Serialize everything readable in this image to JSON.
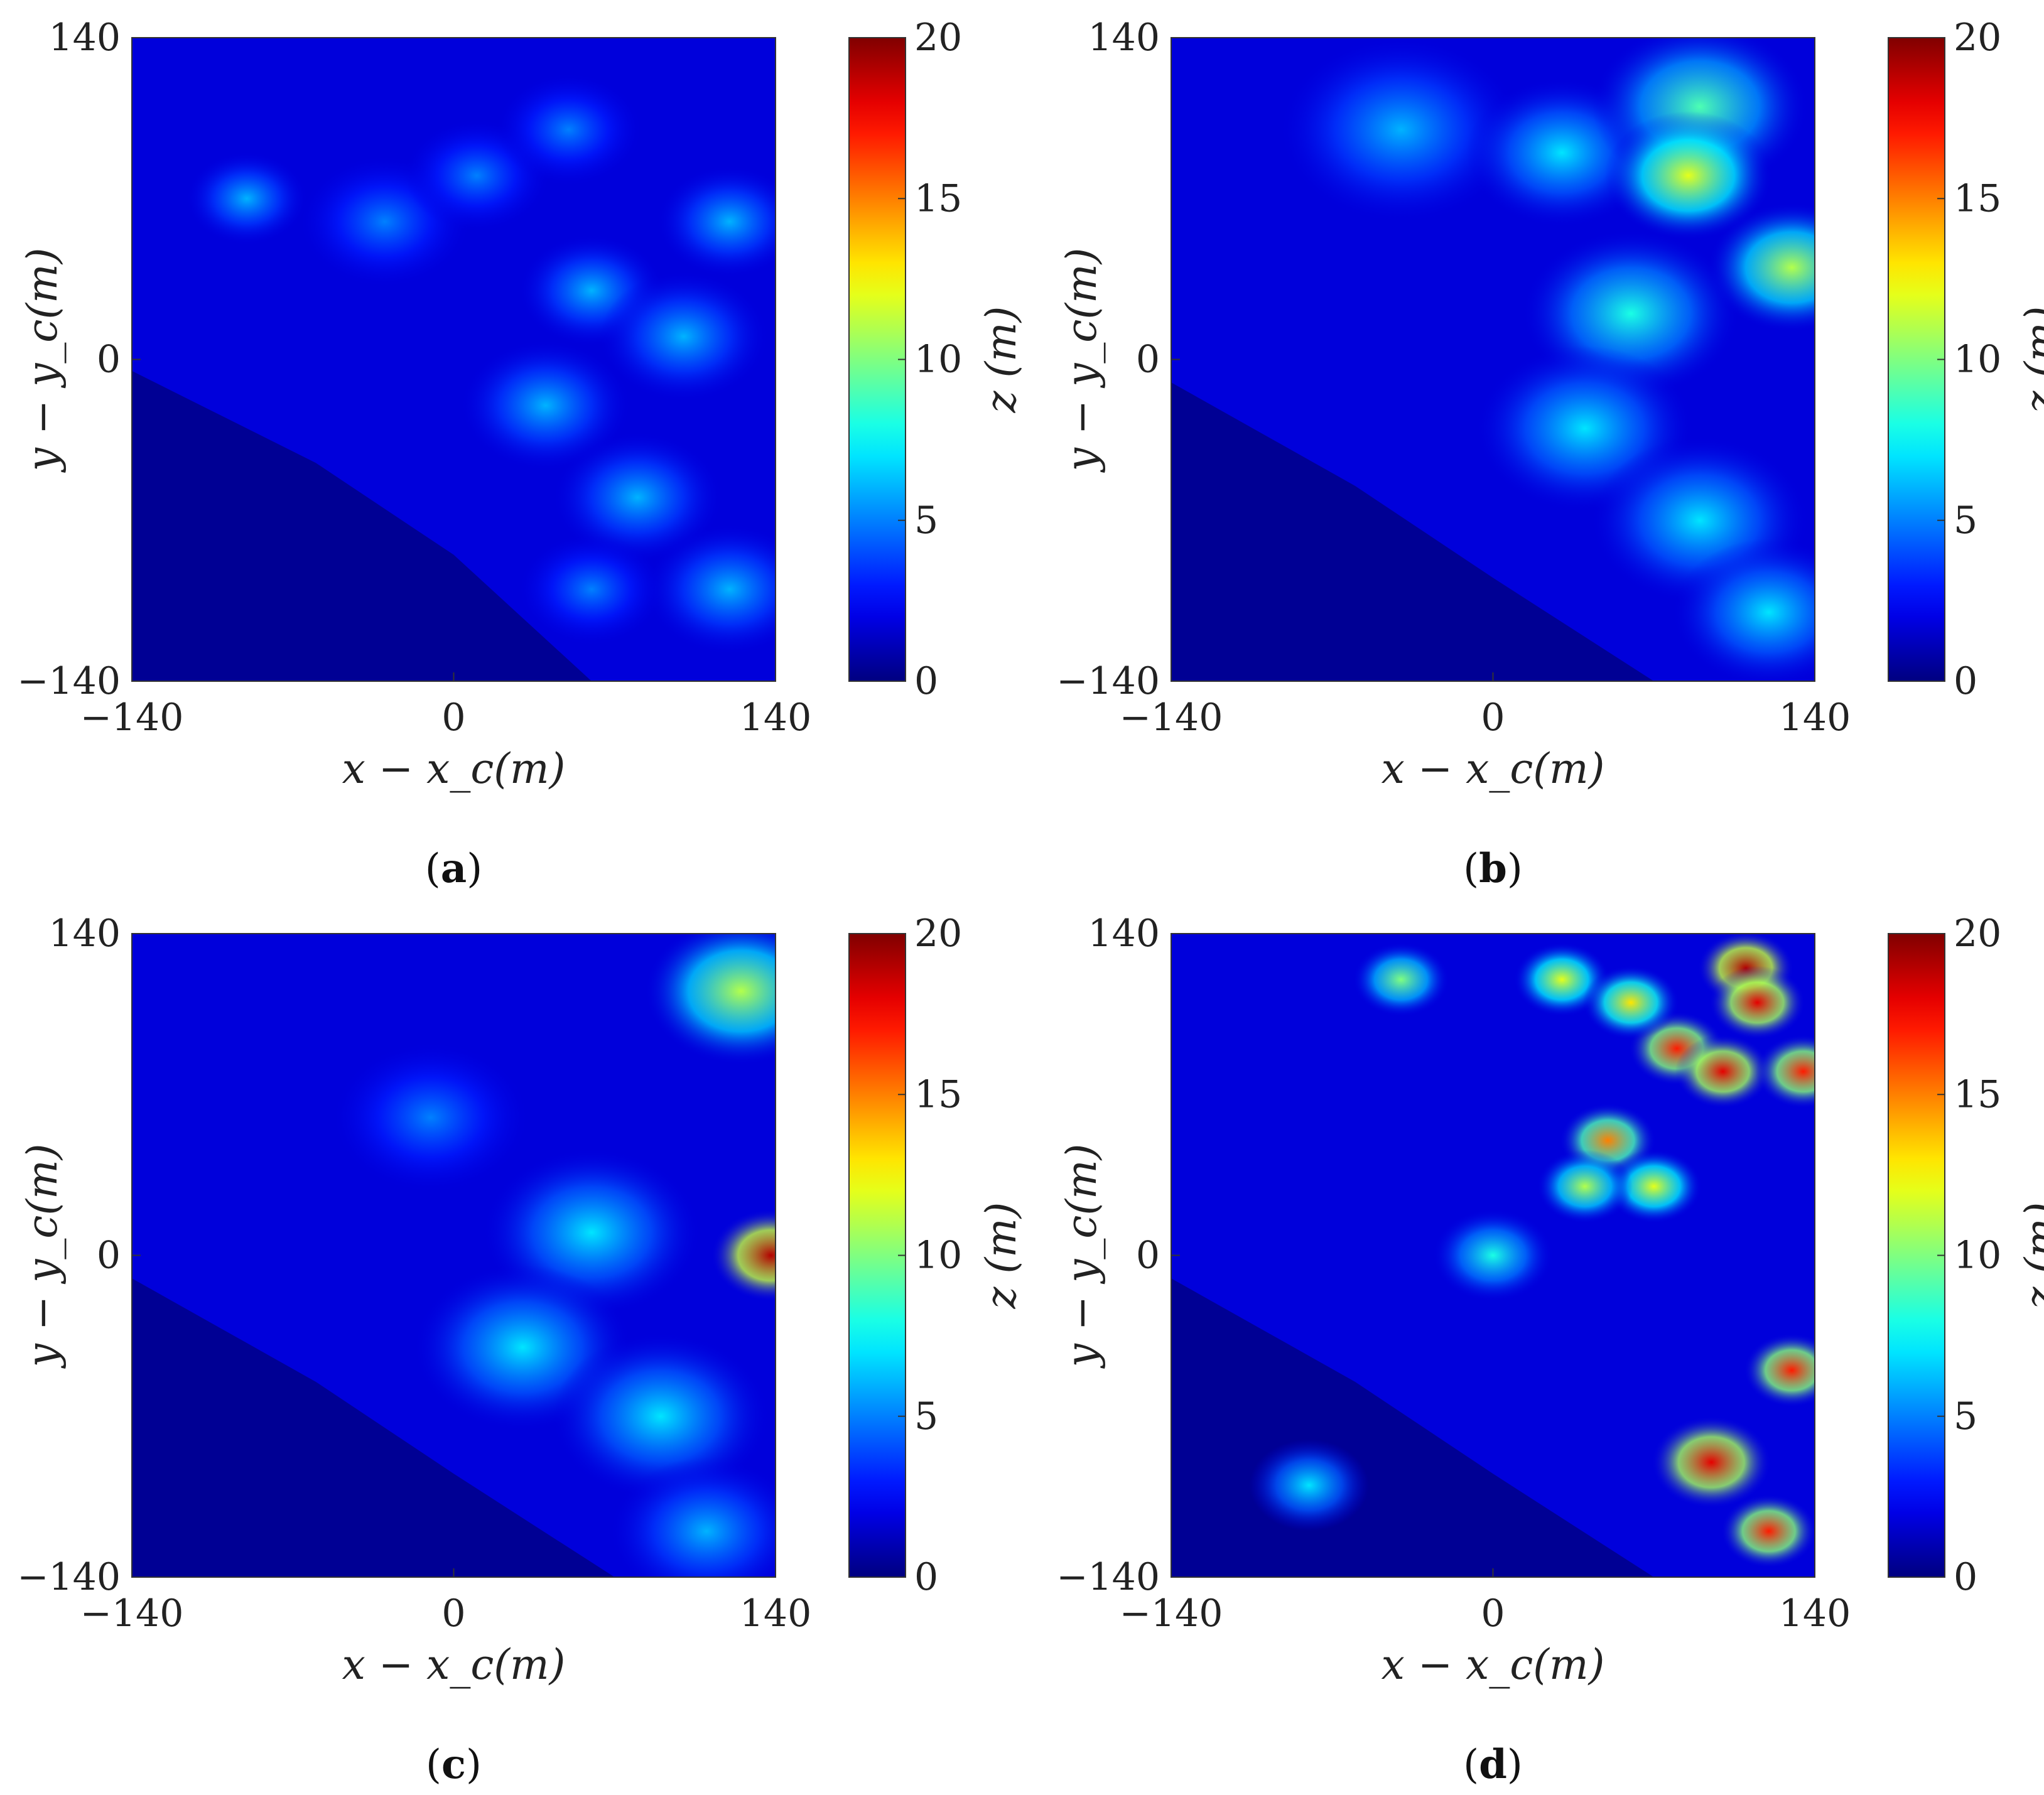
{
  "chart_data": [
    {
      "type": "heatmap",
      "panel_label": "a",
      "xlabel": "x − x_c(m)",
      "ylabel": "y − y_c(m)",
      "xlim": [
        -140,
        140
      ],
      "ylim": [
        -140,
        140
      ],
      "xticks": [
        "−140",
        "0",
        "140"
      ],
      "yticks": [
        "140",
        "0",
        "−140"
      ],
      "colorbar": {
        "label": "z (m)",
        "range": [
          0,
          20
        ],
        "ticks": [
          "20",
          "15",
          "10",
          "5",
          "0"
        ],
        "colormap": "jet"
      },
      "coastline": [
        [
          -140,
          -5
        ],
        [
          -60,
          -45
        ],
        [
          0,
          -85
        ],
        [
          60,
          -140
        ]
      ],
      "features": [
        {
          "x": -90,
          "y": 70,
          "r": 10,
          "z": 6
        },
        {
          "x": -30,
          "y": 60,
          "r": 14,
          "z": 5
        },
        {
          "x": 10,
          "y": 80,
          "r": 12,
          "z": 5
        },
        {
          "x": 50,
          "y": 100,
          "r": 12,
          "z": 5
        },
        {
          "x": 120,
          "y": 60,
          "r": 12,
          "z": 6
        },
        {
          "x": 60,
          "y": 30,
          "r": 12,
          "z": 6
        },
        {
          "x": 100,
          "y": 10,
          "r": 14,
          "z": 6
        },
        {
          "x": 40,
          "y": -20,
          "r": 14,
          "z": 6
        },
        {
          "x": 80,
          "y": -60,
          "r": 14,
          "z": 6
        },
        {
          "x": 120,
          "y": -100,
          "r": 14,
          "z": 6
        },
        {
          "x": 60,
          "y": -100,
          "r": 12,
          "z": 5
        }
      ]
    },
    {
      "type": "heatmap",
      "panel_label": "b",
      "xlabel": "x − x_c(m)",
      "ylabel": "y − y_c(m)",
      "xlim": [
        -140,
        140
      ],
      "ylim": [
        -140,
        140
      ],
      "xticks": [
        "−140",
        "0",
        "140"
      ],
      "yticks": [
        "140",
        "0",
        "−140"
      ],
      "colorbar": {
        "label": "z (m)",
        "range": [
          0,
          20
        ],
        "ticks": [
          "20",
          "15",
          "10",
          "5",
          "0"
        ],
        "colormap": "jet"
      },
      "coastline": [
        [
          -140,
          -10
        ],
        [
          -60,
          -55
        ],
        [
          0,
          -95
        ],
        [
          70,
          -140
        ]
      ],
      "features": [
        {
          "x": -40,
          "y": 100,
          "r": 20,
          "z": 6
        },
        {
          "x": 30,
          "y": 90,
          "r": 16,
          "z": 7
        },
        {
          "x": 90,
          "y": 110,
          "r": 18,
          "z": 9
        },
        {
          "x": 85,
          "y": 80,
          "r": 14,
          "z": 12
        },
        {
          "x": 130,
          "y": 40,
          "r": 14,
          "z": 11
        },
        {
          "x": 60,
          "y": 20,
          "r": 18,
          "z": 8
        },
        {
          "x": 40,
          "y": -30,
          "r": 18,
          "z": 7
        },
        {
          "x": 90,
          "y": -70,
          "r": 18,
          "z": 7
        },
        {
          "x": 120,
          "y": -110,
          "r": 16,
          "z": 7
        }
      ]
    },
    {
      "type": "heatmap",
      "panel_label": "c",
      "xlabel": "x − x_c(m)",
      "ylabel": "y − y_c(m)",
      "xlim": [
        -140,
        140
      ],
      "ylim": [
        -140,
        140
      ],
      "xticks": [
        "−140",
        "0",
        "140"
      ],
      "yticks": [
        "140",
        "0",
        "−140"
      ],
      "colorbar": {
        "label": "z (m)",
        "range": [
          0,
          20
        ],
        "ticks": [
          "20",
          "15",
          "10",
          "5",
          "0"
        ],
        "colormap": "jet"
      },
      "coastline": [
        [
          -140,
          -10
        ],
        [
          -60,
          -55
        ],
        [
          0,
          -95
        ],
        [
          70,
          -140
        ]
      ],
      "features": [
        {
          "x": 125,
          "y": 115,
          "r": 16,
          "z": 11
        },
        {
          "x": -10,
          "y": 60,
          "r": 16,
          "z": 5
        },
        {
          "x": 60,
          "y": 10,
          "r": 18,
          "z": 7
        },
        {
          "x": 138,
          "y": 0,
          "r": 10,
          "z": 19
        },
        {
          "x": 30,
          "y": -40,
          "r": 18,
          "z": 7
        },
        {
          "x": 90,
          "y": -70,
          "r": 18,
          "z": 7
        },
        {
          "x": 110,
          "y": -120,
          "r": 16,
          "z": 6
        }
      ]
    },
    {
      "type": "heatmap",
      "panel_label": "d",
      "xlabel": "x − x_c(m)",
      "ylabel": "y − y_c(m)",
      "xlim": [
        -140,
        140
      ],
      "ylim": [
        -140,
        140
      ],
      "xticks": [
        "−140",
        "0",
        "140"
      ],
      "yticks": [
        "140",
        "0",
        "−140"
      ],
      "colorbar": {
        "label": "z (m)",
        "range": [
          0,
          20
        ],
        "ticks": [
          "20",
          "15",
          "10",
          "5",
          "0"
        ],
        "colormap": "jet"
      },
      "coastline": [
        [
          -140,
          -10
        ],
        [
          -60,
          -55
        ],
        [
          0,
          -95
        ],
        [
          70,
          -140
        ]
      ],
      "features": [
        {
          "x": 110,
          "y": 125,
          "r": 8,
          "z": 19
        },
        {
          "x": 115,
          "y": 110,
          "r": 8,
          "z": 18
        },
        {
          "x": 80,
          "y": 90,
          "r": 8,
          "z": 17
        },
        {
          "x": 100,
          "y": 80,
          "r": 8,
          "z": 18
        },
        {
          "x": 135,
          "y": 80,
          "r": 8,
          "z": 17
        },
        {
          "x": 50,
          "y": 50,
          "r": 8,
          "z": 15
        },
        {
          "x": 70,
          "y": 30,
          "r": 8,
          "z": 12
        },
        {
          "x": 40,
          "y": 30,
          "r": 8,
          "z": 11
        },
        {
          "x": 130,
          "y": -50,
          "r": 8,
          "z": 17
        },
        {
          "x": 95,
          "y": -90,
          "r": 10,
          "z": 18
        },
        {
          "x": 120,
          "y": -120,
          "r": 8,
          "z": 17
        },
        {
          "x": 30,
          "y": 120,
          "r": 8,
          "z": 12
        },
        {
          "x": -40,
          "y": 120,
          "r": 8,
          "z": 10
        },
        {
          "x": 0,
          "y": 0,
          "r": 10,
          "z": 8
        },
        {
          "x": -80,
          "y": -100,
          "r": 10,
          "z": 7
        },
        {
          "x": 60,
          "y": 110,
          "r": 8,
          "z": 13
        }
      ]
    }
  ]
}
